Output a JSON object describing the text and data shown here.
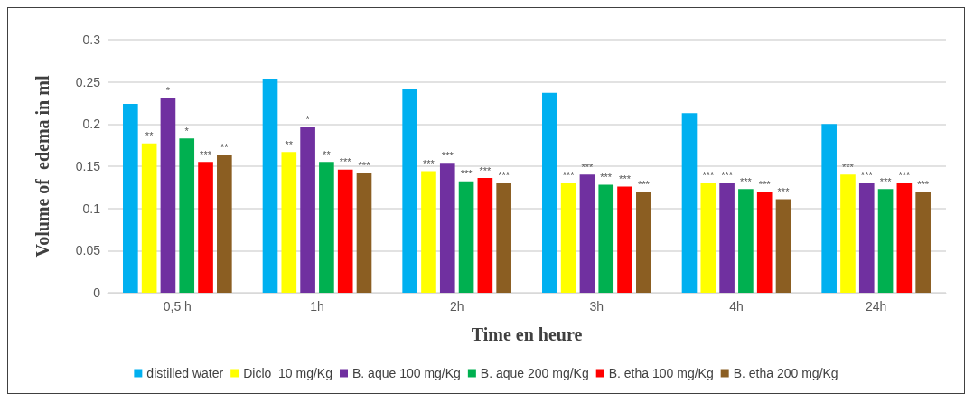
{
  "chart_data": {
    "type": "bar",
    "xlabel": "Time en heure",
    "ylabel": "Volume of  edema in ml",
    "categories": [
      "0,5 h",
      "1h",
      "2h",
      "3h",
      "4h",
      "24h"
    ],
    "series": [
      {
        "name": "distilled water",
        "color": "#00b0f0",
        "values": [
          0.224,
          0.254,
          0.241,
          0.237,
          0.213,
          0.2
        ]
      },
      {
        "name": "Diclo  10 mg/Kg",
        "color": "#ffff00",
        "values": [
          0.177,
          0.167,
          0.144,
          0.13,
          0.13,
          0.14
        ],
        "value_labels": [
          "**",
          "**",
          "***",
          "***",
          "***",
          "***"
        ]
      },
      {
        "name": "B. aque 100 mg/Kg",
        "color": "#7030a0",
        "values": [
          0.231,
          0.197,
          0.154,
          0.14,
          0.13,
          0.13
        ],
        "value_labels": [
          "*",
          "*",
          "***",
          "***",
          "***",
          "***"
        ]
      },
      {
        "name": "B. aque 200 mg/Kg",
        "color": "#00b050",
        "values": [
          0.183,
          0.155,
          0.132,
          0.128,
          0.123,
          0.123
        ],
        "value_labels": [
          "*",
          "**",
          "***",
          "***",
          "***",
          "***"
        ]
      },
      {
        "name": "B. etha 100 mg/Kg",
        "color": "#ff0000",
        "values": [
          0.155,
          0.146,
          0.136,
          0.126,
          0.12,
          0.13
        ],
        "value_labels": [
          "***",
          "***",
          "***",
          "***",
          "***",
          "***"
        ]
      },
      {
        "name": "B. etha 200 mg/Kg",
        "color": "#8b5e22",
        "values": [
          0.163,
          0.142,
          0.13,
          0.12,
          0.111,
          0.12
        ],
        "value_labels": [
          "**",
          "***",
          "***",
          "***",
          "***",
          "***"
        ]
      }
    ],
    "ylim": [
      0,
      0.3
    ],
    "yticks": [
      0,
      0.05,
      0.1,
      0.15,
      0.2,
      0.25,
      0.3
    ],
    "grid": "y",
    "legend": "bottom"
  }
}
